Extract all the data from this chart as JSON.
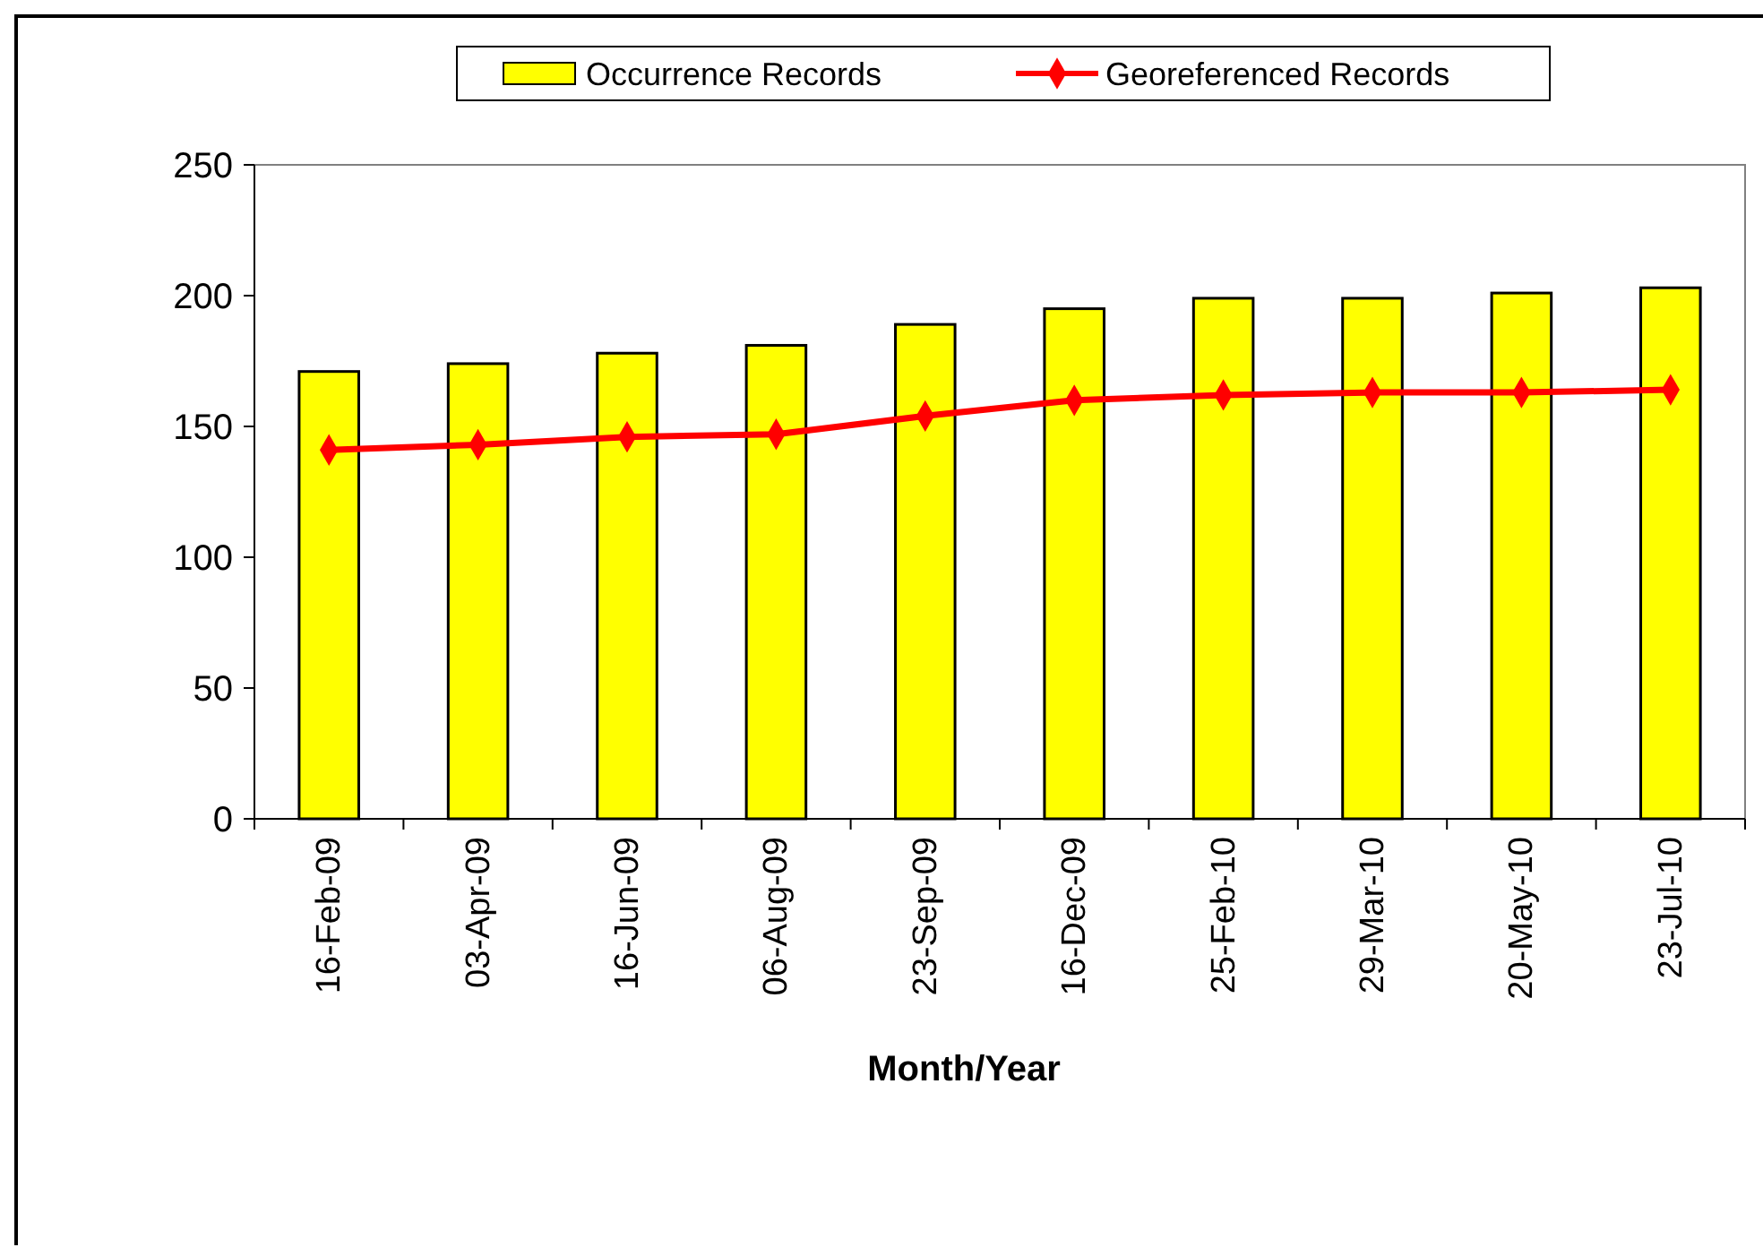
{
  "chart_data": {
    "type": "bar",
    "xlabel": "Month/Year",
    "categories": [
      "16-Feb-09",
      "03-Apr-09",
      "16-Jun-09",
      "06-Aug-09",
      "23-Sep-09",
      "16-Dec-09",
      "25-Feb-10",
      "29-Mar-10",
      "20-May-10",
      "23-Jul-10"
    ],
    "series": [
      {
        "name": "Occurrence Records",
        "color": "#ffff00",
        "values": [
          171,
          174,
          178,
          181,
          189,
          195,
          199,
          199,
          201,
          203
        ]
      },
      {
        "name": "Georeferenced Records",
        "type": "line",
        "color": "#ff0000",
        "marker": "diamond",
        "values": [
          141,
          143,
          146,
          147,
          154,
          160,
          162,
          163,
          163,
          164
        ]
      }
    ],
    "ylim": [
      0,
      250
    ],
    "yticks": [
      0,
      50,
      100,
      150,
      200,
      250
    ],
    "grid": false,
    "legend": "top"
  }
}
